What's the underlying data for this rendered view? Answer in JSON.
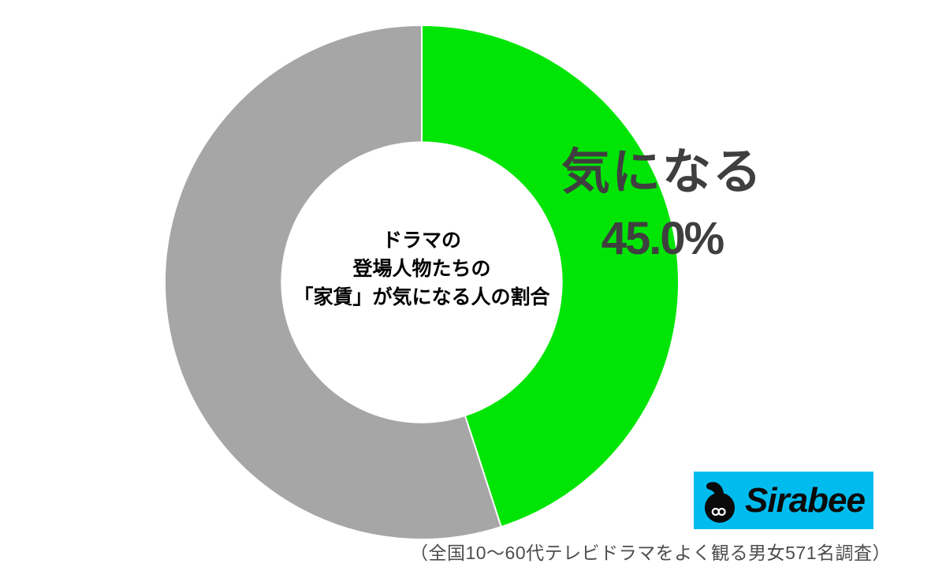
{
  "chart_data": {
    "type": "pie",
    "variant": "donut",
    "title": "ドラマの登場人物たちの「家賃」が気になる人の割合",
    "center_lines": [
      "ドラマの",
      "登場人物たちの",
      "「家賃」が気になる人の割合"
    ],
    "slices": [
      {
        "label": "気になる",
        "value": 45.0,
        "color": "#00E505"
      },
      {
        "label": "",
        "value": 55.0,
        "color": "#A6A6A6"
      }
    ],
    "start_angle_deg": 0,
    "clockwise": true,
    "inner_radius_ratio": 0.545,
    "slice_border_color": "#FFFFFF",
    "callout": {
      "label": "気になる",
      "value_text": "45.0%",
      "text_color": "#3F3F3F"
    }
  },
  "branding": {
    "logo_text": "Sirabee",
    "logo_bg_color": "#00BCEE",
    "logo_icon": "sirabee-mascot-icon",
    "logo_icon_color": "#0a0a0a"
  },
  "caption": "（全国10〜60代テレビドラマをよく観る男女571名調査）"
}
